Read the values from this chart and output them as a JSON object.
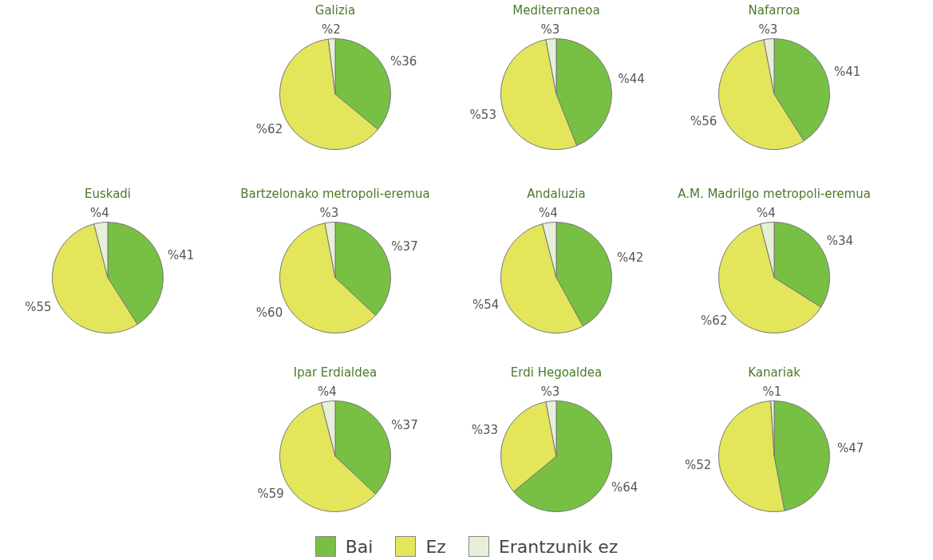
{
  "chart_data": [
    {
      "type": "pie",
      "title": "Euskadi",
      "categories": [
        "Bai",
        "Ez",
        "Erantzunik ez"
      ],
      "values": [
        41,
        55,
        4
      ],
      "colors": [
        "#77c043",
        "#e3e55a",
        "#e6f0d8"
      ],
      "value_labels": [
        "%41",
        "%55",
        "%4"
      ],
      "legend": "bottom"
    },
    {
      "type": "pie",
      "title": "Galizia",
      "values": [
        36,
        62,
        2
      ],
      "colors": [
        "#77c043",
        "#e3e55a",
        "#e6f0d8"
      ],
      "value_labels": [
        "%36",
        "%62",
        "%2"
      ]
    },
    {
      "type": "pie",
      "title": "Mediterraneoa",
      "values": [
        44,
        53,
        3
      ],
      "colors": [
        "#77c043",
        "#e3e55a",
        "#e6f0d8"
      ],
      "value_labels": [
        "%44",
        "%53",
        "%3"
      ]
    },
    {
      "type": "pie",
      "title": "Nafarroa",
      "values": [
        41,
        56,
        3
      ],
      "colors": [
        "#77c043",
        "#e3e55a",
        "#e6f0d8"
      ],
      "value_labels": [
        "%41",
        "%56",
        "%3"
      ]
    },
    {
      "type": "pie",
      "title": "Bartzelonako metropoli-eremua",
      "values": [
        37,
        60,
        3
      ],
      "colors": [
        "#77c043",
        "#e3e55a",
        "#e6f0d8"
      ],
      "value_labels": [
        "%37",
        "%60",
        "%3"
      ]
    },
    {
      "type": "pie",
      "title": "Andaluzia",
      "values": [
        42,
        54,
        4
      ],
      "colors": [
        "#77c043",
        "#e3e55a",
        "#e6f0d8"
      ],
      "value_labels": [
        "%42",
        "%54",
        "%4"
      ]
    },
    {
      "type": "pie",
      "title": "A.M. Madrilgo metropoli-eremua",
      "values": [
        34,
        62,
        4
      ],
      "colors": [
        "#77c043",
        "#e3e55a",
        "#e6f0d8"
      ],
      "value_labels": [
        "%34",
        "%62",
        "%4"
      ]
    },
    {
      "type": "pie",
      "title": "Ipar Erdialdea",
      "values": [
        37,
        59,
        4
      ],
      "colors": [
        "#77c043",
        "#e3e55a",
        "#e6f0d8"
      ],
      "value_labels": [
        "%37",
        "%59",
        "%4"
      ]
    },
    {
      "type": "pie",
      "title": "Erdi Hegoaldea",
      "values": [
        64,
        33,
        3
      ],
      "colors": [
        "#77c043",
        "#e3e55a",
        "#e6f0d8"
      ],
      "value_labels": [
        "%64",
        "%33",
        "%3"
      ]
    },
    {
      "type": "pie",
      "title": "Kanariak",
      "values": [
        47,
        52,
        1
      ],
      "colors": [
        "#77c043",
        "#e3e55a",
        "#e6f0d8"
      ],
      "value_labels": [
        "%47",
        "%52",
        "%1"
      ]
    }
  ]
}
